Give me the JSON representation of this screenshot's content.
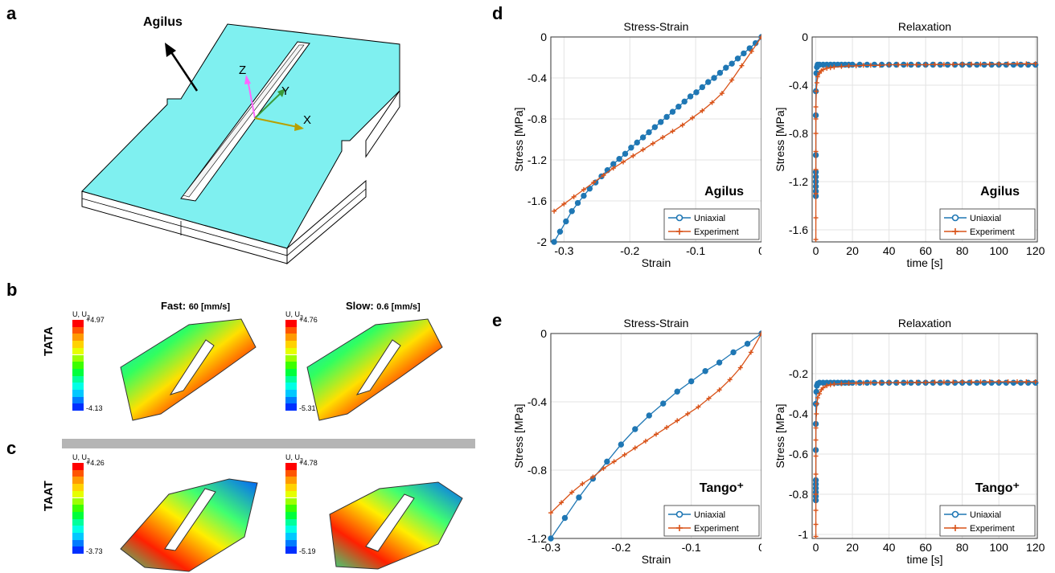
{
  "panels": {
    "a": "a",
    "b": "b",
    "c": "c",
    "d": "d",
    "e": "e"
  },
  "panel_a": {
    "material_label": "Agilus",
    "axis_x": "X",
    "axis_y": "Y",
    "axis_z": "Z",
    "colors": {
      "top": "#7ff0f0",
      "side": "#ffffff",
      "outline": "#000000"
    }
  },
  "fea": {
    "fast_label_bold": "Fast:",
    "fast_value": "60 [mm/s]",
    "slow_label_bold": "Slow:",
    "slow_value": "0.6 [mm/s]",
    "row_tata": "TATA",
    "row_taat": "TAAT",
    "legend_title": "U, U",
    "legend_sub": "3",
    "legends": [
      {
        "max": "+4.97",
        "min": "-4.13"
      },
      {
        "max": "+4.76",
        "min": "-5.31"
      },
      {
        "max": "+4.26",
        "min": "-3.73"
      },
      {
        "max": "+4.78",
        "min": "-5.19"
      }
    ]
  },
  "chart_data": [
    {
      "id": "d-stress-strain",
      "type": "line",
      "title": "Stress-Strain",
      "xlabel": "Strain",
      "ylabel": "Stress [MPa]",
      "xlim": [
        -0.32,
        0
      ],
      "ylim": [
        -2,
        0
      ],
      "xticks": [
        "-0.3",
        "-0.2",
        "-0.1",
        "0"
      ],
      "yticks": [
        "-2",
        "-1.6",
        "-1.2",
        "-0.8",
        "-0.4",
        "0"
      ],
      "annotation": "Agilus",
      "legend": [
        "Uniaxial",
        "Experiment"
      ],
      "legend_position": "bottom-right",
      "grid": true,
      "series": [
        {
          "name": "Uniaxial",
          "color": "#1f77b4",
          "marker": "circle",
          "x": [
            -0.315,
            -0.306,
            -0.297,
            -0.288,
            -0.279,
            -0.27,
            -0.261,
            -0.252,
            -0.243,
            -0.234,
            -0.225,
            -0.216,
            -0.207,
            -0.198,
            -0.189,
            -0.18,
            -0.171,
            -0.162,
            -0.153,
            -0.144,
            -0.135,
            -0.126,
            -0.117,
            -0.108,
            -0.099,
            -0.09,
            -0.081,
            -0.072,
            -0.063,
            -0.054,
            -0.045,
            -0.036,
            -0.027,
            -0.018,
            -0.009,
            0
          ],
          "y": [
            -2.0,
            -1.9,
            -1.8,
            -1.7,
            -1.62,
            -1.55,
            -1.48,
            -1.42,
            -1.36,
            -1.3,
            -1.24,
            -1.19,
            -1.14,
            -1.08,
            -1.03,
            -0.98,
            -0.93,
            -0.88,
            -0.83,
            -0.78,
            -0.73,
            -0.68,
            -0.63,
            -0.58,
            -0.54,
            -0.49,
            -0.44,
            -0.4,
            -0.35,
            -0.3,
            -0.26,
            -0.21,
            -0.16,
            -0.11,
            -0.06,
            0
          ]
        },
        {
          "name": "Experiment",
          "color": "#d95319",
          "marker": "plus",
          "x": [
            -0.315,
            -0.3,
            -0.285,
            -0.27,
            -0.255,
            -0.24,
            -0.225,
            -0.21,
            -0.195,
            -0.18,
            -0.165,
            -0.15,
            -0.135,
            -0.12,
            -0.105,
            -0.09,
            -0.075,
            -0.06,
            -0.045,
            -0.03,
            -0.015,
            0
          ],
          "y": [
            -1.7,
            -1.63,
            -1.56,
            -1.49,
            -1.42,
            -1.35,
            -1.28,
            -1.22,
            -1.16,
            -1.1,
            -1.04,
            -0.98,
            -0.92,
            -0.86,
            -0.79,
            -0.72,
            -0.64,
            -0.55,
            -0.42,
            -0.28,
            -0.14,
            0
          ]
        }
      ]
    },
    {
      "id": "d-relaxation",
      "type": "line",
      "title": "Relaxation",
      "xlabel": "time [s]",
      "ylabel": "Stress [MPa]",
      "xlim": [
        -2,
        121
      ],
      "ylim": [
        -1.7,
        0
      ],
      "xticks": [
        "0",
        "20",
        "40",
        "60",
        "80",
        "100",
        "120"
      ],
      "yticks": [
        "-1.6",
        "-1.2",
        "-0.8",
        "-0.4",
        "0"
      ],
      "annotation": "Agilus",
      "legend": [
        "Uniaxial",
        "Experiment"
      ],
      "legend_position": "bottom-right",
      "grid": true,
      "series": [
        {
          "name": "Uniaxial",
          "color": "#1f77b4",
          "marker": "circle",
          "x": [
            0,
            0,
            0,
            0,
            0,
            0,
            0,
            0,
            0,
            0.3,
            0.6,
            1,
            2,
            4,
            6,
            8,
            10,
            12,
            14,
            16,
            18,
            20,
            24,
            28,
            32,
            36,
            40,
            44,
            48,
            52,
            56,
            60,
            64,
            68,
            72,
            76,
            80,
            84,
            88,
            92,
            96,
            100,
            104,
            108,
            112,
            116,
            120
          ],
          "y": [
            -1.32,
            -1.28,
            -1.24,
            -1.2,
            -1.16,
            -1.12,
            -0.98,
            -0.65,
            -0.45,
            -0.3,
            -0.25,
            -0.23,
            -0.23,
            -0.23,
            -0.23,
            -0.23,
            -0.23,
            -0.23,
            -0.23,
            -0.23,
            -0.23,
            -0.23,
            -0.23,
            -0.23,
            -0.23,
            -0.23,
            -0.23,
            -0.23,
            -0.23,
            -0.23,
            -0.23,
            -0.23,
            -0.23,
            -0.23,
            -0.23,
            -0.23,
            -0.23,
            -0.23,
            -0.23,
            -0.23,
            -0.23,
            -0.23,
            -0.23,
            -0.23,
            -0.23,
            -0.23,
            -0.23
          ]
        },
        {
          "name": "Experiment",
          "color": "#d95319",
          "marker": "plus",
          "x": [
            0,
            0,
            0,
            0,
            0,
            0,
            0,
            0,
            0.3,
            0.6,
            1,
            2,
            3,
            4,
            6,
            8,
            10,
            14,
            18,
            22,
            26,
            30,
            35,
            40,
            45,
            50,
            55,
            60,
            65,
            70,
            75,
            80,
            85,
            90,
            95,
            100,
            105,
            110,
            115,
            120
          ],
          "y": [
            -1.68,
            -1.5,
            -1.3,
            -1.1,
            -0.95,
            -0.8,
            -0.68,
            -0.58,
            -0.45,
            -0.38,
            -0.33,
            -0.3,
            -0.28,
            -0.27,
            -0.26,
            -0.255,
            -0.25,
            -0.245,
            -0.24,
            -0.24,
            -0.235,
            -0.235,
            -0.235,
            -0.23,
            -0.23,
            -0.23,
            -0.23,
            -0.23,
            -0.228,
            -0.228,
            -0.228,
            -0.225,
            -0.225,
            -0.225,
            -0.225,
            -0.223,
            -0.223,
            -0.222,
            -0.222,
            -0.222
          ]
        }
      ]
    },
    {
      "id": "e-stress-strain",
      "type": "line",
      "title": "Stress-Strain",
      "xlabel": "Strain",
      "ylabel": "Stress [MPa]",
      "xlim": [
        -0.3,
        0
      ],
      "ylim": [
        -1.2,
        0
      ],
      "xticks": [
        "-0.3",
        "-0.2",
        "-0.1",
        "0"
      ],
      "yticks": [
        "-1.2",
        "-0.8",
        "-0.4",
        "0"
      ],
      "annotation": "Tango⁺",
      "legend": [
        "Uniaxial",
        "Experiment"
      ],
      "legend_position": "bottom-right",
      "grid": true,
      "series": [
        {
          "name": "Uniaxial",
          "color": "#1f77b4",
          "marker": "circle",
          "x": [
            -0.3,
            -0.28,
            -0.26,
            -0.24,
            -0.22,
            -0.2,
            -0.18,
            -0.16,
            -0.14,
            -0.12,
            -0.1,
            -0.08,
            -0.06,
            -0.04,
            -0.02,
            0
          ],
          "y": [
            -1.2,
            -1.08,
            -0.96,
            -0.85,
            -0.75,
            -0.65,
            -0.56,
            -0.48,
            -0.41,
            -0.34,
            -0.28,
            -0.22,
            -0.17,
            -0.11,
            -0.06,
            0
          ]
        },
        {
          "name": "Experiment",
          "color": "#d95319",
          "marker": "plus",
          "x": [
            -0.3,
            -0.285,
            -0.27,
            -0.255,
            -0.24,
            -0.225,
            -0.21,
            -0.195,
            -0.18,
            -0.165,
            -0.15,
            -0.135,
            -0.12,
            -0.105,
            -0.09,
            -0.075,
            -0.06,
            -0.045,
            -0.03,
            -0.015,
            0
          ],
          "y": [
            -1.05,
            -0.99,
            -0.93,
            -0.88,
            -0.84,
            -0.79,
            -0.75,
            -0.71,
            -0.67,
            -0.63,
            -0.59,
            -0.55,
            -0.51,
            -0.47,
            -0.43,
            -0.38,
            -0.33,
            -0.27,
            -0.2,
            -0.11,
            0
          ]
        }
      ]
    },
    {
      "id": "e-relaxation",
      "type": "line",
      "title": "Relaxation",
      "xlabel": "time [s]",
      "ylabel": "Stress [MPa]",
      "xlim": [
        -2,
        121
      ],
      "ylim": [
        -1.02,
        0
      ],
      "xticks": [
        "0",
        "20",
        "40",
        "60",
        "80",
        "100",
        "120"
      ],
      "yticks": [
        "-1",
        "-0.8",
        "-0.6",
        "-0.4",
        "-0.2"
      ],
      "annotation": "Tango⁺",
      "legend": [
        "Uniaxial",
        "Experiment"
      ],
      "legend_position": "bottom-right",
      "grid": true,
      "series": [
        {
          "name": "Uniaxial",
          "color": "#1f77b4",
          "marker": "circle",
          "x": [
            0,
            0,
            0,
            0,
            0,
            0,
            0,
            0,
            0,
            0.3,
            0.6,
            1,
            2,
            4,
            6,
            8,
            10,
            12,
            14,
            16,
            18,
            20,
            24,
            28,
            32,
            36,
            40,
            44,
            48,
            52,
            56,
            60,
            64,
            68,
            72,
            76,
            80,
            84,
            88,
            92,
            96,
            100,
            104,
            108,
            112,
            116,
            120
          ],
          "y": [
            -0.83,
            -0.81,
            -0.79,
            -0.77,
            -0.75,
            -0.73,
            -0.58,
            -0.45,
            -0.35,
            -0.29,
            -0.26,
            -0.25,
            -0.245,
            -0.245,
            -0.245,
            -0.245,
            -0.245,
            -0.245,
            -0.245,
            -0.245,
            -0.245,
            -0.245,
            -0.245,
            -0.245,
            -0.245,
            -0.245,
            -0.245,
            -0.245,
            -0.245,
            -0.245,
            -0.245,
            -0.245,
            -0.245,
            -0.245,
            -0.245,
            -0.245,
            -0.245,
            -0.245,
            -0.245,
            -0.245,
            -0.245,
            -0.245,
            -0.245,
            -0.245,
            -0.245,
            -0.245,
            -0.245
          ]
        },
        {
          "name": "Experiment",
          "color": "#d95319",
          "marker": "plus",
          "x": [
            0,
            0,
            0,
            0,
            0,
            0,
            0,
            0,
            0.3,
            0.6,
            1,
            2,
            3,
            4,
            6,
            8,
            10,
            14,
            18,
            22,
            26,
            30,
            35,
            40,
            45,
            50,
            55,
            60,
            65,
            70,
            75,
            80,
            85,
            90,
            95,
            100,
            105,
            110,
            115,
            120
          ],
          "y": [
            -1.01,
            -0.95,
            -0.88,
            -0.8,
            -0.7,
            -0.61,
            -0.53,
            -0.47,
            -0.4,
            -0.35,
            -0.32,
            -0.3,
            -0.28,
            -0.27,
            -0.26,
            -0.255,
            -0.252,
            -0.25,
            -0.248,
            -0.247,
            -0.246,
            -0.245,
            -0.245,
            -0.244,
            -0.244,
            -0.243,
            -0.243,
            -0.243,
            -0.242,
            -0.242,
            -0.242,
            -0.241,
            -0.241,
            -0.241,
            -0.24,
            -0.24,
            -0.24,
            -0.24,
            -0.24,
            -0.24
          ]
        }
      ]
    }
  ]
}
